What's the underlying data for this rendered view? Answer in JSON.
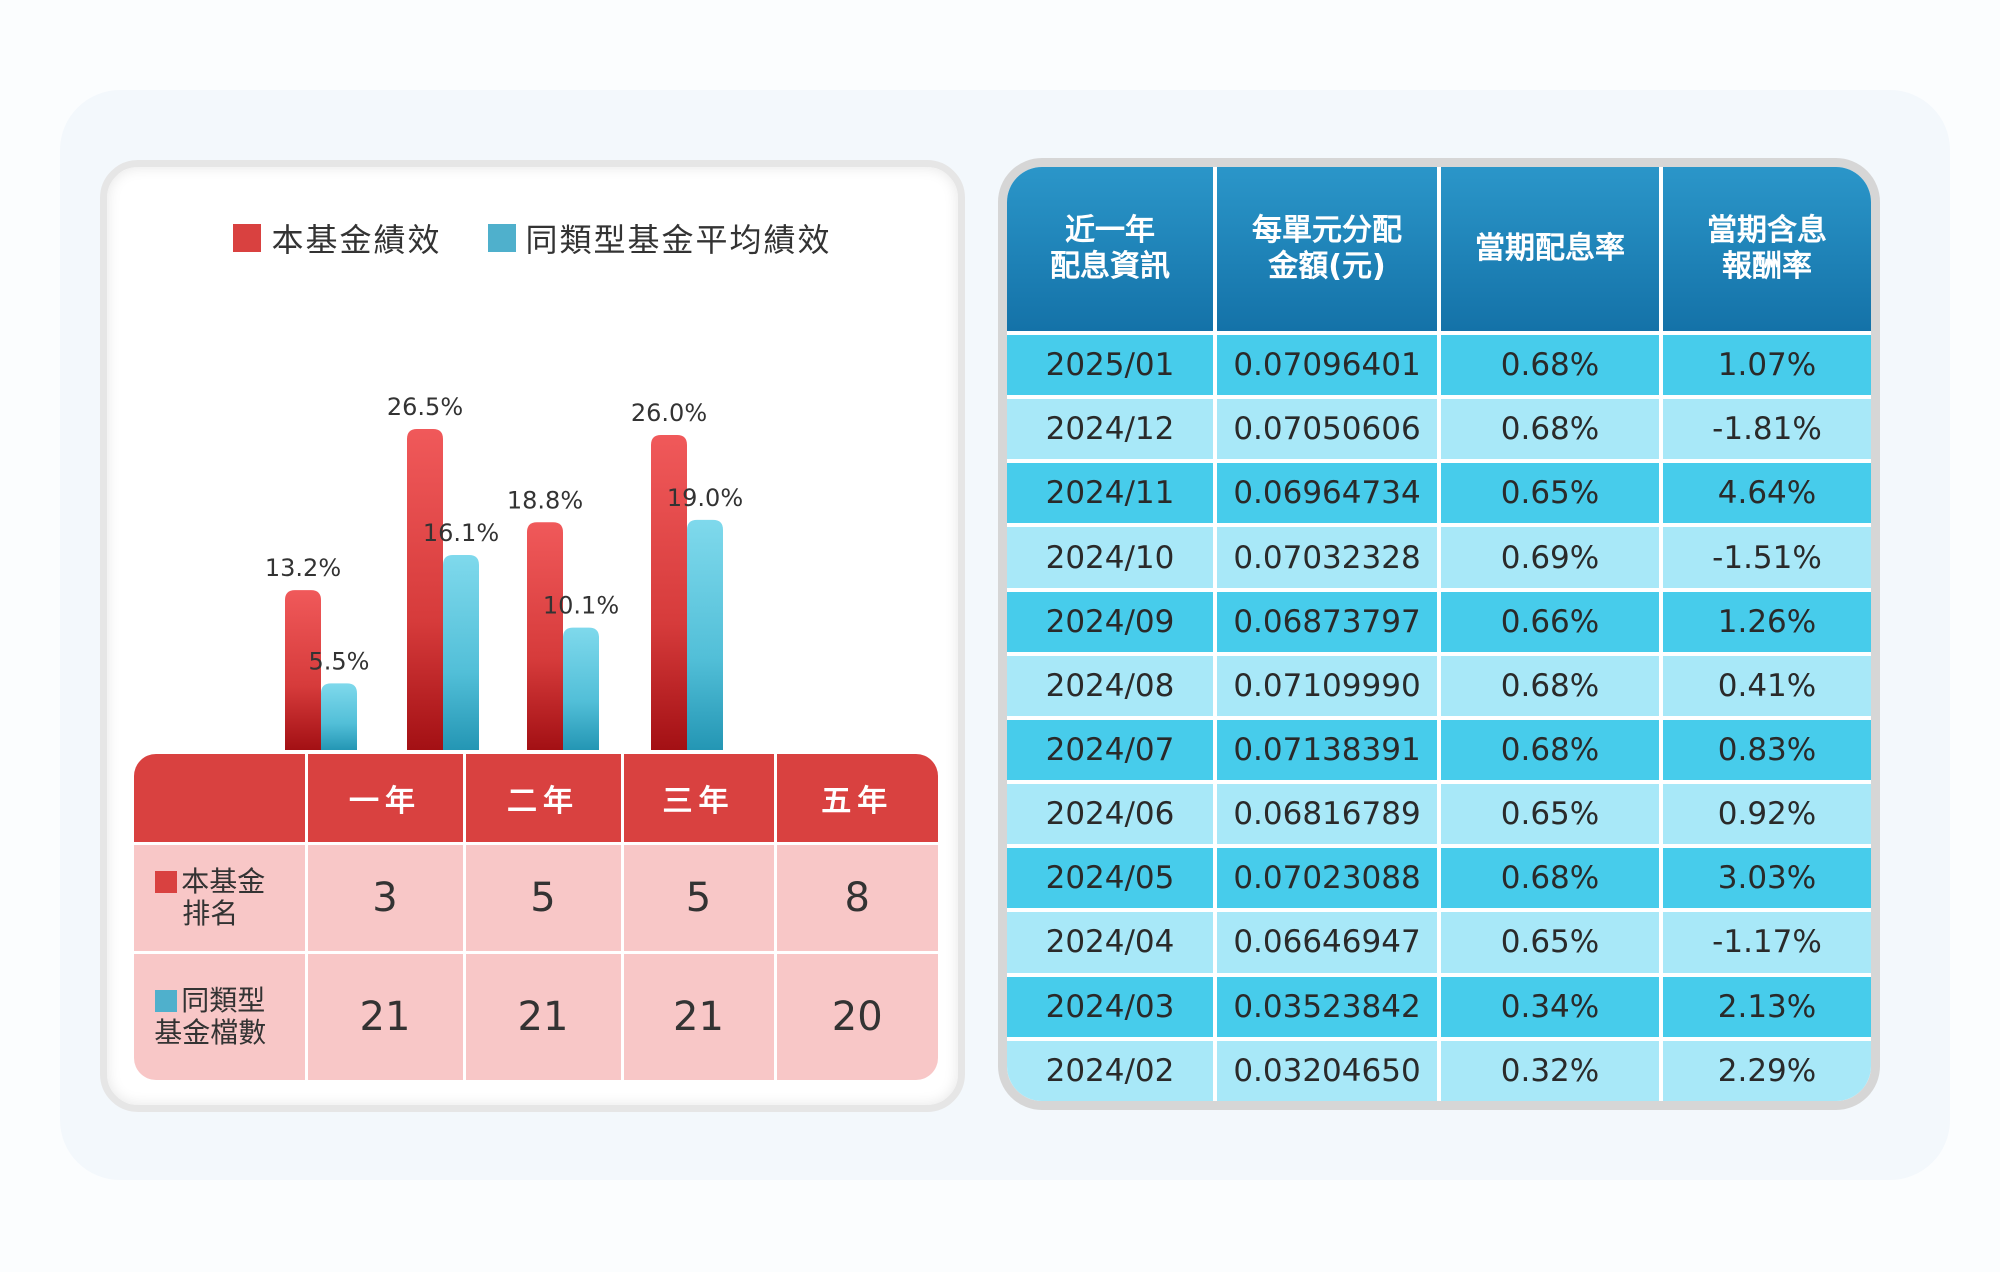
{
  "legend": {
    "fund": "本基金績效",
    "peer": "同類型基金平均績效"
  },
  "colors": {
    "fund": "#d94140",
    "peer": "#4fb0cc",
    "fund_light": "#f9c6c6",
    "table_header": "#1a7fb6",
    "row_dark": "#47cceb",
    "row_light": "#a8e8f8"
  },
  "chart_data": {
    "type": "bar",
    "categories": [
      "一年",
      "二年",
      "三年",
      "五年"
    ],
    "series": [
      {
        "name": "本基金績效",
        "values": [
          13.2,
          26.5,
          18.8,
          26.0
        ],
        "labels": [
          "13.2%",
          "26.5%",
          "18.8%",
          "26.0%"
        ]
      },
      {
        "name": "同類型基金平均績效",
        "values": [
          5.5,
          16.1,
          10.1,
          19.0
        ],
        "labels": [
          "5.5%",
          "16.1%",
          "10.1%",
          "19.0%"
        ]
      }
    ],
    "ylim": [
      0,
      30
    ],
    "legend_position": "top-center"
  },
  "rank_table": {
    "headers": [
      "",
      "一年",
      "二年",
      "三年",
      "五年"
    ],
    "rows": [
      {
        "label_line1": "本基金",
        "label_line2": "排名",
        "values": [
          "3",
          "5",
          "5",
          "8"
        ]
      },
      {
        "label_line1": "同類型",
        "label_line2": "基金檔數",
        "values": [
          "21",
          "21",
          "21",
          "20"
        ]
      }
    ]
  },
  "dividend_table": {
    "headers": [
      {
        "line1": "近一年",
        "line2": "配息資訊"
      },
      {
        "line1": "每單元分配",
        "line2": "金額(元)"
      },
      {
        "line1": "當期配息率",
        "line2": ""
      },
      {
        "line1": "當期含息",
        "line2": "報酬率"
      }
    ],
    "rows": [
      [
        "2025/01",
        "0.07096401",
        "0.68%",
        "1.07%"
      ],
      [
        "2024/12",
        "0.07050606",
        "0.68%",
        "-1.81%"
      ],
      [
        "2024/11",
        "0.06964734",
        "0.65%",
        "4.64%"
      ],
      [
        "2024/10",
        "0.07032328",
        "0.69%",
        "-1.51%"
      ],
      [
        "2024/09",
        "0.06873797",
        "0.66%",
        "1.26%"
      ],
      [
        "2024/08",
        "0.07109990",
        "0.68%",
        "0.41%"
      ],
      [
        "2024/07",
        "0.07138391",
        "0.68%",
        "0.83%"
      ],
      [
        "2024/06",
        "0.06816789",
        "0.65%",
        "0.92%"
      ],
      [
        "2024/05",
        "0.07023088",
        "0.68%",
        "3.03%"
      ],
      [
        "2024/04",
        "0.06646947",
        "0.65%",
        "-1.17%"
      ],
      [
        "2024/03",
        "0.03523842",
        "0.34%",
        "2.13%"
      ],
      [
        "2024/02",
        "0.03204650",
        "0.32%",
        "2.29%"
      ]
    ]
  }
}
